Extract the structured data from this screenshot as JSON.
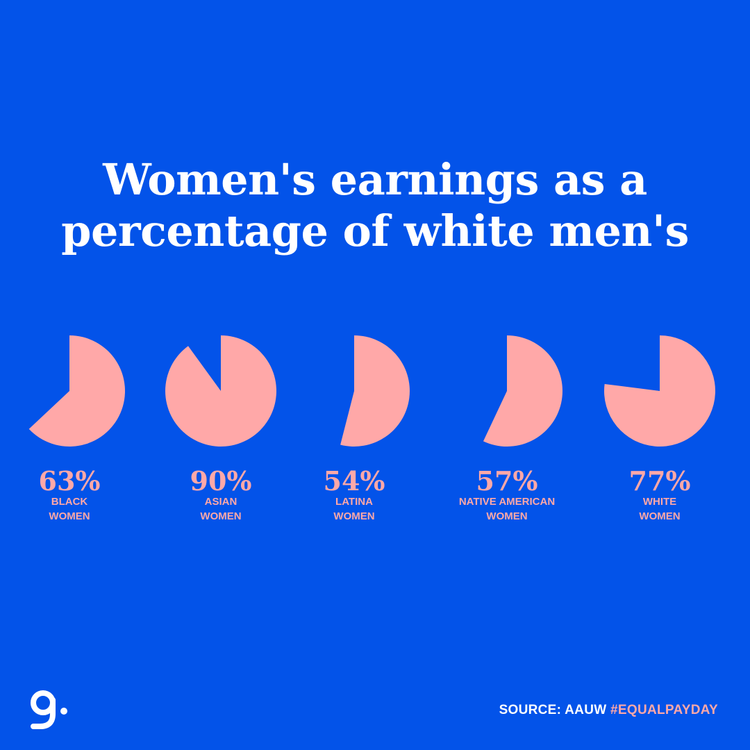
{
  "title_lines": [
    "Women's earnings as a",
    "percentage of white men's"
  ],
  "colors": {
    "background": "#0353E9",
    "accent": "#FFA8A8",
    "title": "#FFFFFF"
  },
  "chart_data": {
    "type": "pie",
    "title": "Women's earnings as a percentage of white men's",
    "unit": "%",
    "series": [
      {
        "value": 63,
        "value_label": "63%",
        "label_lines": [
          "BLACK",
          "WOMEN"
        ]
      },
      {
        "value": 90,
        "value_label": "90%",
        "label_lines": [
          "ASIAN",
          "WOMEN"
        ]
      },
      {
        "value": 54,
        "value_label": "54%",
        "label_lines": [
          "LATINA",
          "WOMEN"
        ]
      },
      {
        "value": 57,
        "value_label": "57%",
        "label_lines": [
          "NATIVE AMERICAN",
          "WOMEN"
        ]
      },
      {
        "value": 77,
        "value_label": "77%",
        "label_lines": [
          "WHITE",
          "WOMEN"
        ]
      }
    ]
  },
  "footer": {
    "logo_icon": "g-dot-logo-icon",
    "source_label": "SOURCE: AAUW",
    "hashtag": "#EQUALPAYDAY"
  }
}
